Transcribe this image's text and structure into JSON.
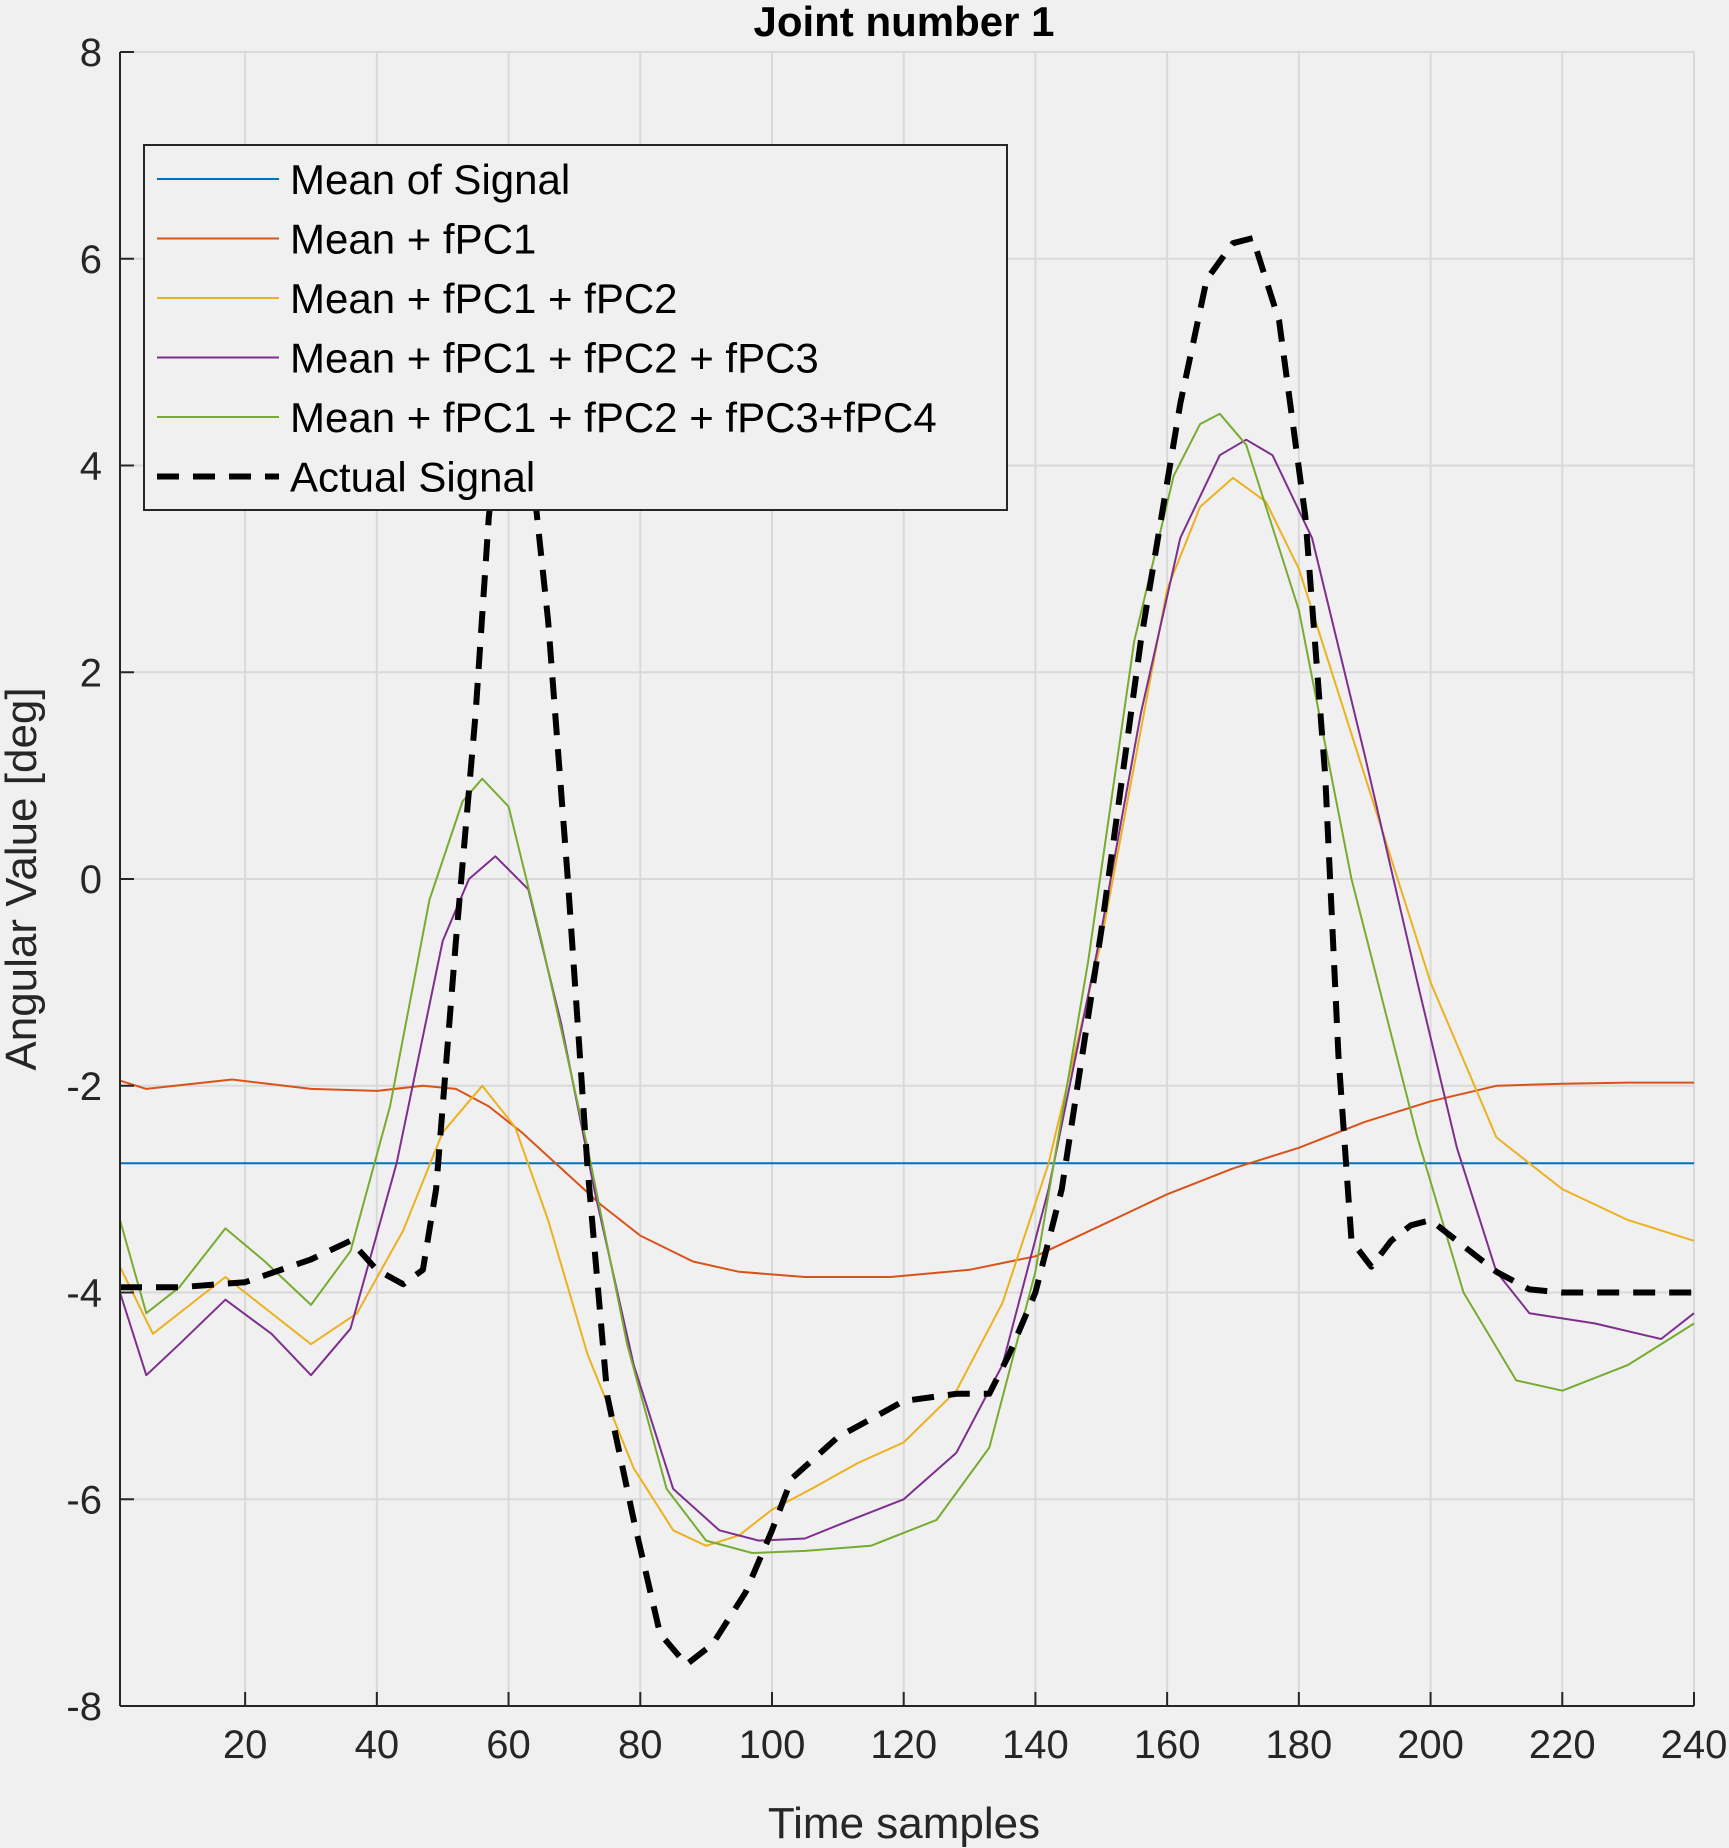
{
  "chart_data": {
    "type": "line",
    "title": "Joint number 1",
    "xlabel": "Time samples",
    "ylabel": "Angular Value [deg]",
    "xlim": [
      1,
      240
    ],
    "ylim": [
      -8,
      8
    ],
    "xticks": [
      20,
      40,
      60,
      80,
      100,
      120,
      140,
      160,
      180,
      200,
      220,
      240
    ],
    "xtick_labels": [
      "20",
      "40",
      "60",
      "80",
      "100",
      "120",
      "140",
      "160",
      "180",
      "200",
      "220",
      "240"
    ],
    "yticks": [
      -8,
      -6,
      -4,
      -2,
      0,
      2,
      4,
      6,
      8
    ],
    "ytick_labels": [
      "-8",
      "-6",
      "-4",
      "-2",
      "0",
      "2",
      "4",
      "6",
      "8"
    ],
    "grid": true,
    "legend_position": "top-left",
    "series": [
      {
        "name": "Mean of Signal",
        "color": "#0072BD",
        "dash": "solid",
        "points": [
          [
            1,
            -2.75
          ],
          [
            240,
            -2.75
          ]
        ]
      },
      {
        "name": "Mean + fPC1",
        "color": "#D95319",
        "dash": "solid",
        "points": [
          [
            1,
            -1.95
          ],
          [
            5,
            -2.03
          ],
          [
            18,
            -1.94
          ],
          [
            30,
            -2.03
          ],
          [
            40,
            -2.05
          ],
          [
            47,
            -2.0
          ],
          [
            52,
            -2.03
          ],
          [
            57,
            -2.2
          ],
          [
            62,
            -2.45
          ],
          [
            68,
            -2.8
          ],
          [
            74,
            -3.15
          ],
          [
            80,
            -3.45
          ],
          [
            88,
            -3.7
          ],
          [
            95,
            -3.8
          ],
          [
            105,
            -3.85
          ],
          [
            118,
            -3.85
          ],
          [
            130,
            -3.78
          ],
          [
            140,
            -3.65
          ],
          [
            150,
            -3.35
          ],
          [
            160,
            -3.05
          ],
          [
            170,
            -2.8
          ],
          [
            180,
            -2.6
          ],
          [
            190,
            -2.35
          ],
          [
            200,
            -2.15
          ],
          [
            210,
            -2.0
          ],
          [
            220,
            -1.98
          ],
          [
            230,
            -1.97
          ],
          [
            240,
            -1.97
          ]
        ]
      },
      {
        "name": "Mean + fPC1 + fPC2",
        "color": "#EDB120",
        "dash": "solid",
        "points": [
          [
            1,
            -3.75
          ],
          [
            6,
            -4.4
          ],
          [
            11,
            -4.15
          ],
          [
            17,
            -3.85
          ],
          [
            23,
            -4.15
          ],
          [
            30,
            -4.5
          ],
          [
            37,
            -4.2
          ],
          [
            44,
            -3.4
          ],
          [
            50,
            -2.45
          ],
          [
            56,
            -2.0
          ],
          [
            61,
            -2.4
          ],
          [
            66,
            -3.3
          ],
          [
            72,
            -4.6
          ],
          [
            79,
            -5.7
          ],
          [
            85,
            -6.3
          ],
          [
            90,
            -6.45
          ],
          [
            95,
            -6.35
          ],
          [
            100,
            -6.1
          ],
          [
            106,
            -5.9
          ],
          [
            113,
            -5.65
          ],
          [
            120,
            -5.45
          ],
          [
            128,
            -4.95
          ],
          [
            135,
            -4.1
          ],
          [
            142,
            -2.75
          ],
          [
            150,
            -0.6
          ],
          [
            155,
            1.1
          ],
          [
            160,
            2.8
          ],
          [
            165,
            3.6
          ],
          [
            170,
            3.88
          ],
          [
            175,
            3.65
          ],
          [
            180,
            3.0
          ],
          [
            190,
            1.0
          ],
          [
            200,
            -1.0
          ],
          [
            210,
            -2.5
          ],
          [
            220,
            -3.0
          ],
          [
            230,
            -3.3
          ],
          [
            240,
            -3.5
          ]
        ]
      },
      {
        "name": "Mean + fPC1 + fPC2 + fPC3",
        "color": "#7E2F8E",
        "dash": "solid",
        "points": [
          [
            1,
            -4.0
          ],
          [
            5,
            -4.8
          ],
          [
            10,
            -4.5
          ],
          [
            17,
            -4.07
          ],
          [
            24,
            -4.4
          ],
          [
            30,
            -4.8
          ],
          [
            36,
            -4.35
          ],
          [
            43,
            -2.75
          ],
          [
            50,
            -0.6
          ],
          [
            54,
            0.0
          ],
          [
            58,
            0.22
          ],
          [
            63,
            -0.1
          ],
          [
            68,
            -1.4
          ],
          [
            73,
            -3.0
          ],
          [
            79,
            -4.7
          ],
          [
            85,
            -5.9
          ],
          [
            92,
            -6.3
          ],
          [
            98,
            -6.4
          ],
          [
            105,
            -6.38
          ],
          [
            112,
            -6.2
          ],
          [
            120,
            -6.0
          ],
          [
            128,
            -5.55
          ],
          [
            135,
            -4.7
          ],
          [
            142,
            -3.0
          ],
          [
            150,
            -0.5
          ],
          [
            156,
            1.6
          ],
          [
            162,
            3.3
          ],
          [
            168,
            4.1
          ],
          [
            172,
            4.25
          ],
          [
            176,
            4.1
          ],
          [
            182,
            3.3
          ],
          [
            190,
            1.2
          ],
          [
            198,
            -1.0
          ],
          [
            204,
            -2.6
          ],
          [
            210,
            -3.8
          ],
          [
            215,
            -4.2
          ],
          [
            225,
            -4.3
          ],
          [
            235,
            -4.45
          ],
          [
            240,
            -4.2
          ]
        ]
      },
      {
        "name": "Mean + fPC1 + fPC2 + fPC3+fPC4",
        "color": "#77AC30",
        "dash": "solid",
        "points": [
          [
            1,
            -3.3
          ],
          [
            5,
            -4.2
          ],
          [
            10,
            -3.95
          ],
          [
            17,
            -3.38
          ],
          [
            23,
            -3.7
          ],
          [
            30,
            -4.12
          ],
          [
            36,
            -3.6
          ],
          [
            42,
            -2.2
          ],
          [
            48,
            -0.2
          ],
          [
            53,
            0.75
          ],
          [
            56,
            0.97
          ],
          [
            60,
            0.7
          ],
          [
            65,
            -0.6
          ],
          [
            72,
            -2.6
          ],
          [
            78,
            -4.5
          ],
          [
            84,
            -5.9
          ],
          [
            90,
            -6.4
          ],
          [
            97,
            -6.52
          ],
          [
            105,
            -6.5
          ],
          [
            115,
            -6.45
          ],
          [
            125,
            -6.2
          ],
          [
            133,
            -5.5
          ],
          [
            140,
            -3.8
          ],
          [
            148,
            -0.8
          ],
          [
            155,
            2.3
          ],
          [
            161,
            3.9
          ],
          [
            165,
            4.4
          ],
          [
            168,
            4.5
          ],
          [
            172,
            4.2
          ],
          [
            180,
            2.6
          ],
          [
            188,
            0.0
          ],
          [
            198,
            -2.5
          ],
          [
            205,
            -4.0
          ],
          [
            213,
            -4.85
          ],
          [
            220,
            -4.95
          ],
          [
            230,
            -4.7
          ],
          [
            240,
            -4.3
          ]
        ]
      },
      {
        "name": "Actual Signal",
        "color": "#000000",
        "dash": "dashed",
        "points": [
          [
            1,
            -3.95
          ],
          [
            10,
            -3.95
          ],
          [
            20,
            -3.9
          ],
          [
            30,
            -3.68
          ],
          [
            36,
            -3.5
          ],
          [
            40,
            -3.78
          ],
          [
            44,
            -3.92
          ],
          [
            47,
            -3.78
          ],
          [
            49,
            -3.0
          ],
          [
            52,
            -0.6
          ],
          [
            55,
            1.6
          ],
          [
            57,
            3.5
          ],
          [
            59,
            4.7
          ],
          [
            61,
            5.1
          ],
          [
            63,
            4.3
          ],
          [
            66,
            2.5
          ],
          [
            69,
            0.0
          ],
          [
            72,
            -2.8
          ],
          [
            75,
            -5.0
          ],
          [
            79,
            -6.2
          ],
          [
            83,
            -7.3
          ],
          [
            87,
            -7.6
          ],
          [
            91,
            -7.4
          ],
          [
            96,
            -6.9
          ],
          [
            100,
            -6.3
          ],
          [
            103,
            -5.8
          ],
          [
            110,
            -5.4
          ],
          [
            120,
            -5.05
          ],
          [
            128,
            -4.98
          ],
          [
            133,
            -4.98
          ],
          [
            136,
            -4.6
          ],
          [
            140,
            -4.0
          ],
          [
            144,
            -3.0
          ],
          [
            150,
            -0.5
          ],
          [
            156,
            2.3
          ],
          [
            162,
            4.6
          ],
          [
            166,
            5.8
          ],
          [
            170,
            6.15
          ],
          [
            173,
            6.2
          ],
          [
            177,
            5.4
          ],
          [
            181,
            3.5
          ],
          [
            184,
            1.0
          ],
          [
            186,
            -1.7
          ],
          [
            188,
            -3.5
          ],
          [
            191,
            -3.75
          ],
          [
            194,
            -3.5
          ],
          [
            197,
            -3.35
          ],
          [
            200,
            -3.3
          ],
          [
            205,
            -3.55
          ],
          [
            210,
            -3.8
          ],
          [
            215,
            -3.97
          ],
          [
            220,
            -4.0
          ],
          [
            230,
            -4.0
          ],
          [
            240,
            -4.0
          ]
        ]
      }
    ]
  }
}
